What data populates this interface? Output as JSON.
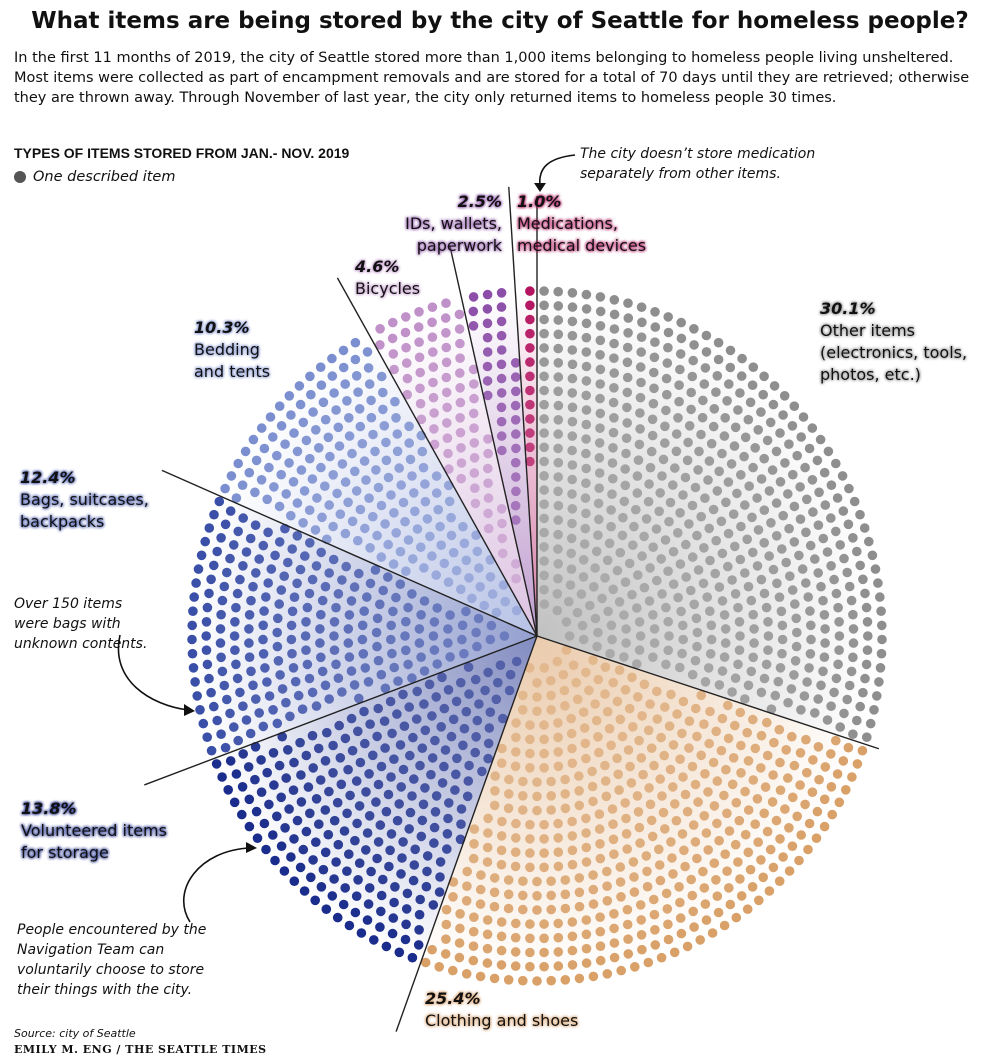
{
  "chart_data": {
    "type": "pie",
    "title": "What items are being stored by the city of Seattle for homeless people?",
    "subtitle": "In the first 11 months of 2019, the city of Seattle stored more than 1,000 items belonging to homeless people living unsheltered. Most items were collected as part of encampment removals and are stored for a total of 70 days until they are retrieved; otherwise they are thrown away. Through November of last year, the city only returned items to homeless people 30 times.",
    "kicker": "TYPES OF ITEMS STORED FROM JAN.- NOV. 2019",
    "legend": "One described item",
    "slices": [
      {
        "label": "Other items (electronics, tools, photos, etc.)",
        "pct_label": "30.1%",
        "value": 30.1,
        "color": "#8e8e8e"
      },
      {
        "label": "Clothing and shoes",
        "pct_label": "25.4%",
        "value": 25.4,
        "color": "#d9a068"
      },
      {
        "label": "Volunteered items for storage",
        "pct_label": "13.8%",
        "value": 13.8,
        "color": "#1a2c8c"
      },
      {
        "label": "Bags, suitcases, backpacks",
        "pct_label": "12.4%",
        "value": 12.4,
        "color": "#3a4fa8"
      },
      {
        "label": "Bedding and tents",
        "pct_label": "10.3%",
        "value": 10.3,
        "color": "#7b8fd0"
      },
      {
        "label": "Bicycles",
        "pct_label": "4.6%",
        "value": 4.6,
        "color": "#c090c8"
      },
      {
        "label": "IDs, wallets, paperwork",
        "pct_label": "2.5%",
        "value": 2.5,
        "color": "#8c4ea8"
      },
      {
        "label": "Medications, medical devices",
        "pct_label": "1.0%",
        "value": 1.0,
        "color": "#b3135f"
      }
    ],
    "annotations": {
      "medication": "The city doesn’t store medication separately from other items.",
      "bags": "Over 150 items were bags with unknown contents.",
      "volunteered": "People encountered by the Navigation Team can voluntarily choose to store their things with the city."
    },
    "source": "Source: city of Seattle",
    "credit": "EMILY M. ENG / THE SEATTLE TIMES"
  }
}
